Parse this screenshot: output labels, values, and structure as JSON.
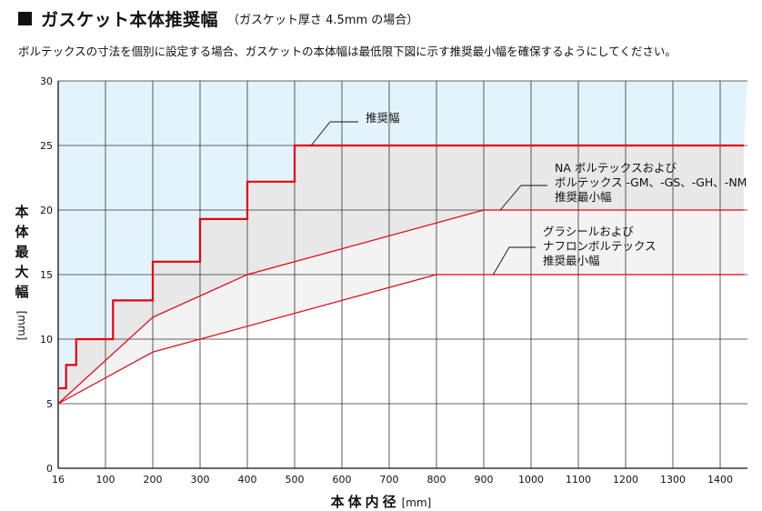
{
  "header": {
    "title": "ガスケット本体推奨幅",
    "subtitle": "（ガスケット厚さ 4.5mm の場合）",
    "description": "ボルテックスの寸法を個別に設定する場合、ガスケットの本体幅は最低限下図に示す推奨最小幅を確保するようにしてください。"
  },
  "chart_data": {
    "type": "line",
    "xlabel": "本体内径",
    "xunit": "[mm]",
    "ylabel": "本体最大幅",
    "yunit": "[mm]",
    "xlim": [
      16,
      1450
    ],
    "ylim": [
      0,
      30
    ],
    "x_ticks": [
      16,
      100,
      200,
      300,
      400,
      500,
      600,
      700,
      800,
      900,
      1000,
      1100,
      1200,
      1300,
      1400
    ],
    "y_ticks": [
      0,
      5,
      10,
      15,
      20,
      25,
      30
    ],
    "grid": true,
    "colors": {
      "background_upper": "#e3f3fc",
      "band_recommended": "#e8e8e8",
      "band_na": "#f3f3f3",
      "line": "#e60012"
    },
    "series": [
      {
        "name": "推奨幅",
        "step": true,
        "points": [
          [
            16,
            6.2
          ],
          [
            30,
            6.2
          ],
          [
            30,
            8
          ],
          [
            48,
            8
          ],
          [
            48,
            10
          ],
          [
            116,
            10
          ],
          [
            116,
            13
          ],
          [
            200,
            13
          ],
          [
            200,
            16
          ],
          [
            300,
            16
          ],
          [
            300,
            19.3
          ],
          [
            400,
            19.3
          ],
          [
            400,
            22.2
          ],
          [
            500,
            22.2
          ],
          [
            500,
            25
          ],
          [
            1450,
            25
          ]
        ]
      },
      {
        "name": "NA ボルテックスおよび ボルテックス -GM、-GS、-GH、-NM 推奨最小幅",
        "points": [
          [
            16,
            5
          ],
          [
            200,
            11.7
          ],
          [
            400,
            15
          ],
          [
            900,
            20
          ],
          [
            1450,
            20
          ]
        ]
      },
      {
        "name": "グラシールおよび ナフロンボルテックス 推奨最小幅",
        "points": [
          [
            16,
            5
          ],
          [
            200,
            9
          ],
          [
            400,
            11
          ],
          [
            800,
            15
          ],
          [
            1450,
            15
          ]
        ]
      }
    ],
    "annotations": [
      {
        "lines": [
          "推奨幅"
        ],
        "text_at": [
          820,
          27.2
        ],
        "pointer": [
          [
            630,
            27.2
          ],
          [
            570,
            27.2
          ],
          [
            535,
            25
          ]
        ]
      },
      {
        "lines": [
          "NA ボルテックスおよび",
          "ボルテックス -GM、-GS、-GH、-NM",
          "推奨最小幅"
        ],
        "text_at": [
          1040,
          22.6
        ],
        "pointer": [
          [
            1040,
            22.6
          ],
          [
            990,
            22.6
          ],
          [
            935,
            20
          ]
        ]
      },
      {
        "lines": [
          "グラシールおよび",
          "ナフロンボルテックス",
          "推奨最小幅"
        ],
        "text_at": [
          1030,
          17.4
        ],
        "pointer": [
          [
            1030,
            17.4
          ],
          [
            975,
            17.4
          ],
          [
            920,
            15
          ]
        ]
      }
    ]
  }
}
